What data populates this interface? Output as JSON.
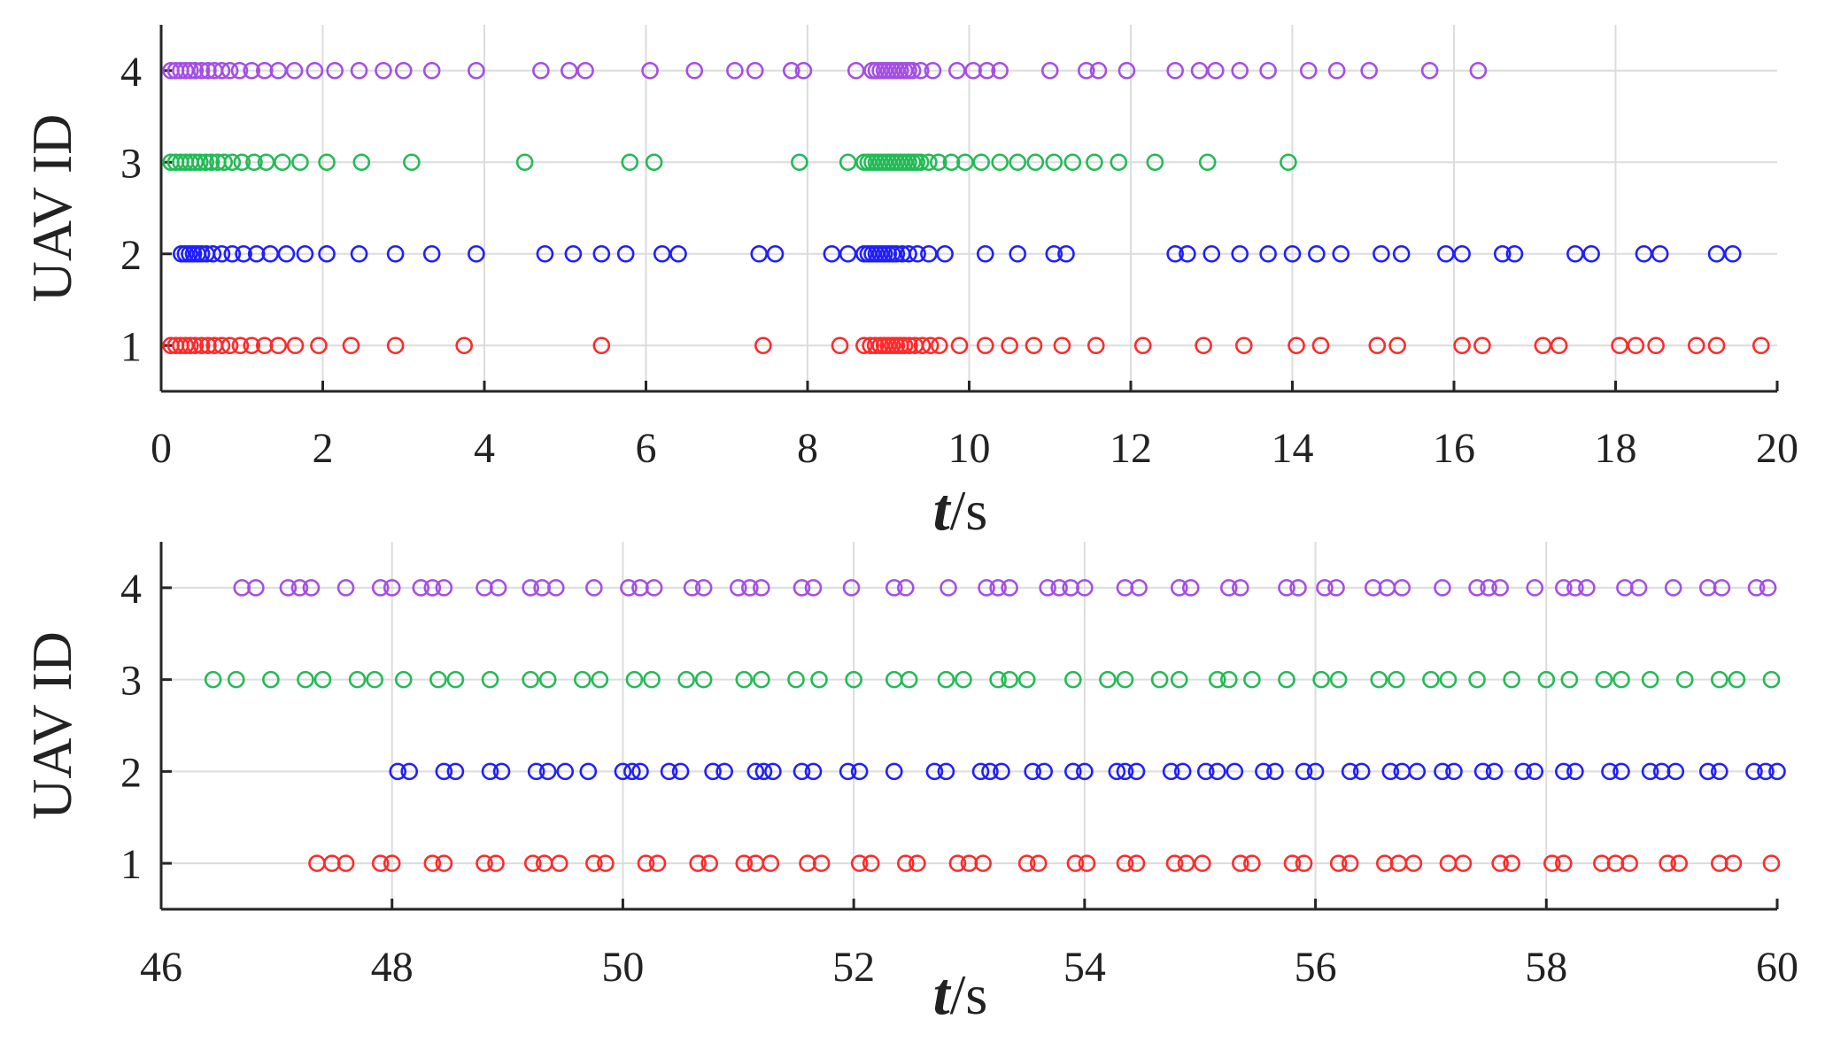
{
  "chart_data": [
    {
      "type": "scatter",
      "xlabel_var": "t",
      "xlabel_unit": "/s",
      "ylabel": "UAV ID",
      "xlim": [
        0,
        20
      ],
      "ylim": [
        0.5,
        4.5
      ],
      "xticks": [
        "0",
        "2",
        "4",
        "6",
        "8",
        "10",
        "12",
        "14",
        "16",
        "18",
        "20"
      ],
      "yticks": [
        "1",
        "2",
        "3",
        "4"
      ],
      "grid": true,
      "marker": "open-circle",
      "series": [
        {
          "id": 1,
          "color": "#ff2a2a",
          "x": [
            0.12,
            0.18,
            0.24,
            0.3,
            0.36,
            0.42,
            0.5,
            0.58,
            0.66,
            0.75,
            0.85,
            0.98,
            1.12,
            1.28,
            1.45,
            1.66,
            1.95,
            2.35,
            2.9,
            3.75,
            5.45,
            7.45,
            8.4,
            8.7,
            8.78,
            8.84,
            8.9,
            8.95,
            9.0,
            9.05,
            9.1,
            9.15,
            9.2,
            9.26,
            9.33,
            9.42,
            9.52,
            9.63,
            9.88,
            10.2,
            10.5,
            10.8,
            11.15,
            11.57,
            12.15,
            12.9,
            13.4,
            14.05,
            14.35,
            15.05,
            15.3,
            16.1,
            16.35,
            17.1,
            17.3,
            18.05,
            18.25,
            18.5,
            19.0,
            19.25,
            19.8
          ],
          "y": 1
        },
        {
          "id": 2,
          "color": "#1f1fff",
          "x": [
            0.25,
            0.3,
            0.35,
            0.4,
            0.45,
            0.5,
            0.56,
            0.64,
            0.75,
            0.88,
            1.02,
            1.18,
            1.35,
            1.55,
            1.78,
            2.05,
            2.45,
            2.9,
            3.35,
            3.9,
            4.75,
            5.1,
            5.45,
            5.75,
            6.2,
            6.4,
            7.4,
            7.6,
            8.3,
            8.5,
            8.7,
            8.75,
            8.8,
            8.85,
            8.9,
            8.95,
            9.0,
            9.05,
            9.1,
            9.17,
            9.25,
            9.36,
            9.5,
            9.7,
            10.2,
            10.6,
            11.05,
            11.2,
            12.55,
            12.7,
            13.0,
            13.35,
            13.7,
            14.0,
            14.3,
            14.6,
            15.1,
            15.35,
            15.9,
            16.1,
            16.6,
            16.75,
            17.5,
            17.7,
            18.35,
            18.55,
            19.25,
            19.45
          ],
          "y": 2
        },
        {
          "id": 3,
          "color": "#22bb55",
          "x": [
            0.12,
            0.18,
            0.24,
            0.3,
            0.36,
            0.42,
            0.48,
            0.55,
            0.62,
            0.7,
            0.78,
            0.88,
            1.0,
            1.15,
            1.3,
            1.5,
            1.72,
            2.05,
            2.48,
            3.1,
            4.5,
            5.8,
            6.1,
            7.9,
            8.5,
            8.7,
            8.75,
            8.8,
            8.85,
            8.9,
            8.95,
            9.0,
            9.05,
            9.1,
            9.15,
            9.2,
            9.25,
            9.3,
            9.35,
            9.4,
            9.5,
            9.62,
            9.78,
            9.95,
            10.15,
            10.38,
            10.6,
            10.82,
            11.05,
            11.28,
            11.55,
            11.85,
            12.3,
            12.95,
            13.95
          ],
          "y": 3
        },
        {
          "id": 4,
          "color": "#a54ee6",
          "x": [
            0.12,
            0.18,
            0.24,
            0.3,
            0.36,
            0.42,
            0.5,
            0.58,
            0.66,
            0.75,
            0.85,
            0.97,
            1.12,
            1.28,
            1.45,
            1.65,
            1.9,
            2.15,
            2.45,
            2.75,
            3.0,
            3.35,
            3.9,
            4.7,
            5.05,
            5.25,
            6.05,
            6.6,
            7.1,
            7.35,
            7.8,
            7.95,
            8.6,
            8.8,
            8.85,
            8.9,
            8.95,
            9.0,
            9.05,
            9.1,
            9.15,
            9.2,
            9.25,
            9.3,
            9.4,
            9.55,
            9.85,
            10.05,
            10.22,
            10.38,
            11.0,
            11.45,
            11.6,
            11.95,
            12.55,
            12.85,
            13.05,
            13.35,
            13.7,
            14.2,
            14.55,
            14.95,
            15.7,
            16.3
          ],
          "y": 4
        }
      ]
    },
    {
      "type": "scatter",
      "xlabel_var": "t",
      "xlabel_unit": "/s",
      "ylabel": "UAV ID",
      "xlim": [
        46,
        60
      ],
      "ylim": [
        0.5,
        4.5
      ],
      "xticks": [
        "46",
        "48",
        "50",
        "52",
        "54",
        "56",
        "58",
        "60"
      ],
      "yticks": [
        "1",
        "2",
        "3",
        "4"
      ],
      "grid": true,
      "marker": "open-circle",
      "series": [
        {
          "id": 1,
          "color": "#ff2a2a",
          "x": [
            47.35,
            47.48,
            47.6,
            47.9,
            48.0,
            48.35,
            48.45,
            48.8,
            48.9,
            49.22,
            49.32,
            49.45,
            49.75,
            49.85,
            50.2,
            50.3,
            50.65,
            50.75,
            51.05,
            51.15,
            51.28,
            51.6,
            51.72,
            52.05,
            52.15,
            52.45,
            52.55,
            52.9,
            53.0,
            53.12,
            53.5,
            53.6,
            53.92,
            54.02,
            54.35,
            54.45,
            54.78,
            54.88,
            55.02,
            55.35,
            55.45,
            55.8,
            55.9,
            56.2,
            56.3,
            56.6,
            56.72,
            56.85,
            57.15,
            57.28,
            57.6,
            57.7,
            58.05,
            58.15,
            58.48,
            58.6,
            58.72,
            59.05,
            59.15,
            59.5,
            59.62,
            59.95
          ],
          "y": 1
        },
        {
          "id": 2,
          "color": "#1f1fff",
          "x": [
            48.05,
            48.15,
            48.45,
            48.55,
            48.85,
            48.95,
            49.25,
            49.35,
            49.5,
            49.7,
            50.0,
            50.08,
            50.15,
            50.4,
            50.5,
            50.78,
            50.88,
            51.15,
            51.22,
            51.3,
            51.55,
            51.65,
            51.95,
            52.05,
            52.35,
            52.7,
            52.8,
            53.1,
            53.18,
            53.28,
            53.55,
            53.65,
            53.9,
            54.0,
            54.28,
            54.35,
            54.45,
            54.75,
            54.85,
            55.05,
            55.15,
            55.3,
            55.55,
            55.65,
            55.9,
            56.0,
            56.3,
            56.4,
            56.65,
            56.75,
            56.88,
            57.1,
            57.2,
            57.45,
            57.55,
            57.8,
            57.9,
            58.15,
            58.25,
            58.55,
            58.65,
            58.9,
            59.0,
            59.12,
            59.4,
            59.5,
            59.8,
            59.9,
            60.0
          ],
          "y": 2
        },
        {
          "id": 3,
          "color": "#22bb55",
          "x": [
            46.45,
            46.65,
            46.95,
            47.25,
            47.4,
            47.7,
            47.85,
            48.1,
            48.4,
            48.55,
            48.85,
            49.2,
            49.35,
            49.65,
            49.8,
            50.1,
            50.25,
            50.55,
            50.7,
            51.05,
            51.2,
            51.5,
            51.7,
            52.0,
            52.35,
            52.48,
            52.8,
            52.95,
            53.25,
            53.35,
            53.5,
            53.9,
            54.2,
            54.35,
            54.65,
            54.82,
            55.15,
            55.25,
            55.45,
            55.75,
            56.05,
            56.2,
            56.55,
            56.7,
            57.0,
            57.15,
            57.4,
            57.7,
            58.0,
            58.2,
            58.5,
            58.65,
            58.9,
            59.2,
            59.5,
            59.65,
            59.95
          ],
          "y": 3
        },
        {
          "id": 4,
          "color": "#a54ee6",
          "x": [
            46.7,
            46.82,
            47.1,
            47.2,
            47.3,
            47.6,
            47.9,
            48.0,
            48.25,
            48.35,
            48.45,
            48.8,
            48.92,
            49.2,
            49.3,
            49.42,
            49.75,
            50.05,
            50.15,
            50.27,
            50.6,
            50.7,
            51.0,
            51.1,
            51.2,
            51.55,
            51.65,
            51.98,
            52.35,
            52.45,
            52.82,
            53.15,
            53.25,
            53.35,
            53.68,
            53.78,
            53.88,
            54.0,
            54.35,
            54.47,
            54.82,
            54.92,
            55.25,
            55.35,
            55.75,
            55.85,
            56.08,
            56.18,
            56.5,
            56.62,
            56.75,
            57.1,
            57.4,
            57.5,
            57.6,
            57.9,
            58.15,
            58.25,
            58.35,
            58.68,
            58.8,
            59.1,
            59.4,
            59.52,
            59.82,
            59.92
          ],
          "y": 4
        }
      ]
    }
  ]
}
